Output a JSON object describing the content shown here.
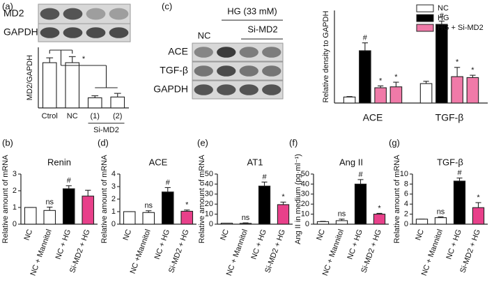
{
  "chart_data": [
    {
      "type": "bar",
      "label": "(a)",
      "y_label": "MD2/GAPDH",
      "blot": {
        "rows": [
          "MD2",
          "GAPDH"
        ]
      },
      "categories": [
        "Ctrol",
        "NC",
        "(1)",
        "(2)"
      ],
      "group_label": "Si-MD2",
      "values": [
        1.12,
        1.12,
        0.25,
        0.27
      ],
      "errors": [
        0.12,
        0.15,
        0.05,
        0.09
      ],
      "colors": [
        "#ffffff",
        "#ffffff",
        "#ffffff",
        "#ffffff"
      ],
      "annotation": "*",
      "ylim": [
        0,
        1.5
      ]
    },
    {
      "type": "grouped-bar",
      "label": "(c)",
      "y_label": "Relative density to GAPDH",
      "blot": {
        "treatment": "HG (33 mM)",
        "control": "NC",
        "knockdown": "Si-MD2",
        "rows": [
          "ACE",
          "TGF-β",
          "GAPDH"
        ]
      },
      "categories": [
        "ACE",
        "TGF-β"
      ],
      "series": [
        {
          "name": "NC",
          "color": "#ffffff",
          "values": [
            0.13,
            0.42
          ],
          "errors": [
            0.01,
            0.05
          ],
          "annotations": [
            null,
            null
          ]
        },
        {
          "name": "HG",
          "color": "#000000",
          "values": [
            1.13,
            1.7
          ],
          "errors": [
            0.17,
            0.07
          ],
          "annotations": [
            "#",
            "#"
          ]
        },
        {
          "name": "HG + Si-MD2",
          "color": "#f07aa8",
          "values": [
            0.33,
            0.57
          ],
          "errors": [
            0.04,
            0.2
          ],
          "annotations": [
            "*",
            "*"
          ]
        },
        {
          "name": null,
          "color": "#f07aa8",
          "values": [
            0.35,
            0.55
          ],
          "errors": [
            0.1,
            0.05
          ],
          "annotations": [
            "*",
            "*"
          ]
        }
      ],
      "ylim": [
        0,
        2
      ]
    },
    {
      "type": "bar",
      "label": "(b)",
      "title": "Renin",
      "y_label": "Relative amount of mRNA",
      "categories": [
        "NC",
        "NC + Mannitol",
        "NC + HG",
        "Si-MD2 + HG"
      ],
      "values": [
        1,
        0.82,
        2.12,
        1.68
      ],
      "errors": [
        0,
        0.2,
        0.18,
        0.35
      ],
      "colors": [
        "#ffffff",
        "#ffffff",
        "#000000",
        "#e8408a"
      ],
      "annotations": [
        null,
        "ns",
        "#",
        null
      ],
      "ylim": [
        0,
        3
      ],
      "yticks": [
        0,
        1,
        2,
        3
      ]
    },
    {
      "type": "bar",
      "label": "(d)",
      "title": "ACE",
      "y_label": "Relative amount of mRNA",
      "categories": [
        "NC",
        "NC +Mannitol",
        "NC + HG",
        "Si-MD2 + HG"
      ],
      "values": [
        1,
        0.93,
        2.57,
        1.03
      ],
      "errors": [
        0,
        0.14,
        0.35,
        0.1
      ],
      "colors": [
        "#ffffff",
        "#ffffff",
        "#000000",
        "#e8408a"
      ],
      "annotations": [
        null,
        "ns",
        "#",
        "*"
      ],
      "ylim": [
        0,
        4
      ],
      "yticks": [
        0,
        1,
        2,
        3,
        4
      ]
    },
    {
      "type": "bar",
      "label": "(e)",
      "title": "AT1",
      "y_label": "Relative amount of mRNA",
      "categories": [
        "NC",
        "NC + Mannitol",
        "NC + HG",
        "Si-MD2 + HG"
      ],
      "values": [
        1,
        0.8,
        38,
        19.5
      ],
      "errors": [
        0,
        0.5,
        4,
        2.5
      ],
      "colors": [
        "#ffffff",
        "#ffffff",
        "#000000",
        "#e8408a"
      ],
      "annotations": [
        null,
        "ns",
        "#",
        "*"
      ],
      "ylim": [
        0,
        50
      ],
      "yticks": [
        0,
        10,
        20,
        30,
        40,
        50
      ]
    },
    {
      "type": "bar",
      "label": "(f)",
      "title": "Ang II",
      "y_label": "Ang II in medium (pg·ml⁻¹)",
      "categories": [
        "NC",
        "NC + Mannitol",
        "NC + HG",
        "Si-MD2 + HG"
      ],
      "values": [
        2.5,
        3.5,
        40,
        10
      ],
      "errors": [
        0.3,
        1.5,
        4.5,
        0.8
      ],
      "colors": [
        "#ffffff",
        "#ffffff",
        "#000000",
        "#e8408a"
      ],
      "annotations": [
        null,
        "ns",
        "#",
        "*"
      ],
      "ylim": [
        0,
        50
      ],
      "yticks": [
        0,
        10,
        20,
        30,
        40,
        50
      ]
    },
    {
      "type": "bar",
      "label": "(g)",
      "title": "TGF-β",
      "y_label": "Relative amount of mRNA",
      "categories": [
        "NC",
        "NC + Mannitol",
        "NC + HG",
        "Si-MD2 + HG"
      ],
      "values": [
        1,
        1.3,
        8.6,
        3.3
      ],
      "errors": [
        0,
        0.15,
        0.6,
        1.0
      ],
      "colors": [
        "#ffffff",
        "#ffffff",
        "#000000",
        "#e8408a"
      ],
      "annotations": [
        null,
        "ns",
        "#",
        "*"
      ],
      "ylim": [
        0,
        10
      ],
      "yticks": [
        0,
        2,
        4,
        6,
        8,
        10
      ]
    }
  ]
}
